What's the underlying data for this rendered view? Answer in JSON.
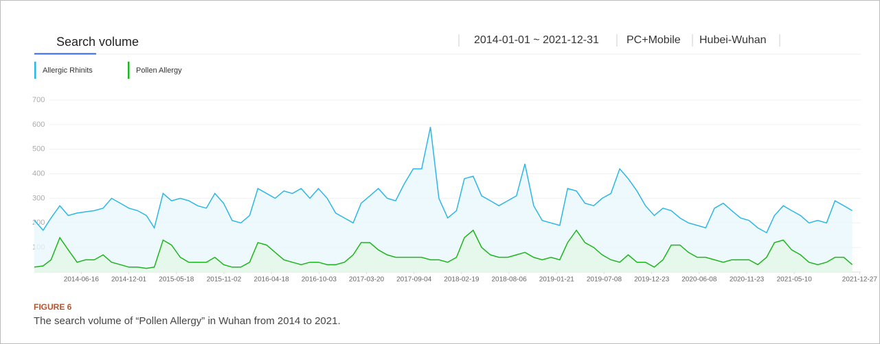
{
  "chart_data": {
    "type": "line",
    "header": {
      "tab": "Search volume",
      "date_range": "2014-01-01 ~ 2021-12-31",
      "device": "PC+Mobile",
      "region": "Hubei-Wuhan"
    },
    "figure_label": "FIGURE 6",
    "caption": "The search volume of “Pollen Allergy” in Wuhan from 2014 to 2021.",
    "x": [
      "2014-01-01",
      "2014-02-01",
      "2014-03-01",
      "2014-04-01",
      "2014-05-01",
      "2014-06-01",
      "2014-07-01",
      "2014-08-01",
      "2014-09-01",
      "2014-10-01",
      "2014-11-01",
      "2014-12-01",
      "2015-01-01",
      "2015-02-01",
      "2015-03-01",
      "2015-04-01",
      "2015-05-01",
      "2015-06-01",
      "2015-07-01",
      "2015-08-01",
      "2015-09-01",
      "2015-10-01",
      "2015-11-01",
      "2015-12-01",
      "2016-01-01",
      "2016-02-01",
      "2016-03-01",
      "2016-04-01",
      "2016-05-01",
      "2016-06-01",
      "2016-07-01",
      "2016-08-01",
      "2016-09-01",
      "2016-10-01",
      "2016-11-01",
      "2016-12-01",
      "2017-01-01",
      "2017-02-01",
      "2017-03-01",
      "2017-04-01",
      "2017-05-01",
      "2017-06-01",
      "2017-07-01",
      "2017-08-01",
      "2017-09-01",
      "2017-10-01",
      "2017-11-01",
      "2017-12-01",
      "2018-01-01",
      "2018-02-01",
      "2018-03-01",
      "2018-04-01",
      "2018-05-01",
      "2018-06-01",
      "2018-07-01",
      "2018-08-01",
      "2018-09-01",
      "2018-10-01",
      "2018-11-01",
      "2018-12-01",
      "2019-01-01",
      "2019-02-01",
      "2019-03-01",
      "2019-04-01",
      "2019-05-01",
      "2019-06-01",
      "2019-07-01",
      "2019-08-01",
      "2019-09-01",
      "2019-10-01",
      "2019-11-01",
      "2019-12-01",
      "2020-01-01",
      "2020-02-01",
      "2020-03-01",
      "2020-04-01",
      "2020-05-01",
      "2020-06-01",
      "2020-07-01",
      "2020-08-01",
      "2020-09-01",
      "2020-10-01",
      "2020-11-01",
      "2020-12-01",
      "2021-01-01",
      "2021-02-01",
      "2021-03-01",
      "2021-04-01",
      "2021-05-01",
      "2021-06-01",
      "2021-07-01",
      "2021-08-01",
      "2021-09-01",
      "2021-10-01",
      "2021-11-01",
      "2021-12-01"
    ],
    "series": [
      {
        "name": "Allergic Rhinits",
        "color": "#2bb6e6",
        "fill": "#eaf7fc",
        "values": [
          210,
          170,
          220,
          270,
          230,
          240,
          245,
          250,
          260,
          300,
          280,
          260,
          250,
          230,
          180,
          320,
          290,
          300,
          290,
          270,
          260,
          320,
          280,
          210,
          200,
          230,
          340,
          320,
          300,
          330,
          320,
          340,
          300,
          340,
          300,
          240,
          220,
          200,
          280,
          310,
          340,
          300,
          290,
          360,
          420,
          420,
          590,
          300,
          220,
          250,
          380,
          390,
          310,
          290,
          270,
          290,
          310,
          440,
          270,
          210,
          200,
          190,
          340,
          330,
          280,
          270,
          300,
          320,
          420,
          380,
          330,
          270,
          230,
          260,
          250,
          220,
          200,
          190,
          180,
          260,
          280,
          250,
          220,
          210,
          180,
          160,
          230,
          270,
          250,
          230,
          200,
          210,
          200,
          290,
          270,
          250
        ]
      },
      {
        "name": "Pollen Allergy",
        "color": "#1cb51c",
        "fill": "#e4f6e6",
        "values": [
          20,
          25,
          50,
          140,
          90,
          40,
          50,
          50,
          70,
          40,
          30,
          20,
          20,
          15,
          20,
          130,
          110,
          60,
          40,
          40,
          40,
          60,
          30,
          20,
          20,
          40,
          120,
          110,
          80,
          50,
          40,
          30,
          40,
          40,
          30,
          30,
          40,
          70,
          120,
          120,
          90,
          70,
          60,
          60,
          60,
          60,
          50,
          50,
          40,
          60,
          140,
          170,
          100,
          70,
          60,
          60,
          70,
          80,
          60,
          50,
          60,
          50,
          120,
          170,
          120,
          100,
          70,
          50,
          40,
          70,
          40,
          40,
          20,
          50,
          110,
          110,
          80,
          60,
          60,
          50,
          40,
          50,
          50,
          50,
          30,
          60,
          120,
          130,
          90,
          70,
          40,
          30,
          40,
          60,
          60,
          30
        ]
      }
    ],
    "xlim": [
      "2014-01-01",
      "2021-12-31"
    ],
    "xticks": [
      "2014-06-16",
      "2014-12-01",
      "2015-05-18",
      "2015-11-02",
      "2016-04-18",
      "2016-10-03",
      "2017-03-20",
      "2017-09-04",
      "2018-02-19",
      "2018-08-06",
      "2019-01-21",
      "2019-07-08",
      "2019-12-23",
      "2020-06-08",
      "2020-11-23",
      "2021-05-10",
      "2021-12-27"
    ],
    "ylim": [
      0,
      700
    ],
    "yticks": [
      100,
      200,
      300,
      400,
      500,
      600,
      700
    ],
    "grid": true,
    "legend": "top-left"
  }
}
